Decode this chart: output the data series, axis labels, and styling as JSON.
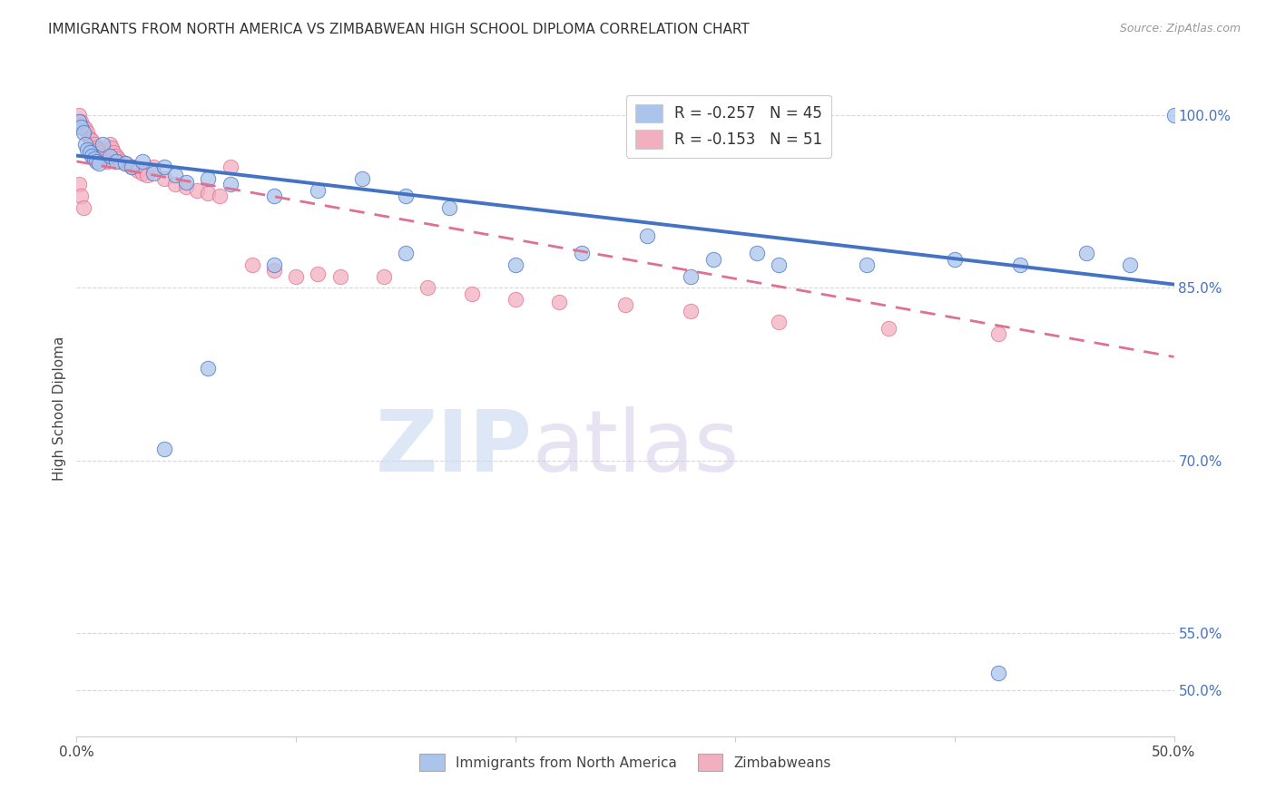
{
  "title": "IMMIGRANTS FROM NORTH AMERICA VS ZIMBABWEAN HIGH SCHOOL DIPLOMA CORRELATION CHART",
  "source": "Source: ZipAtlas.com",
  "ylabel": "High School Diploma",
  "legend_label_1": "Immigrants from North America",
  "legend_label_2": "Zimbabweans",
  "R1": -0.257,
  "N1": 45,
  "R2": -0.153,
  "N2": 51,
  "xmin": 0.0,
  "xmax": 0.5,
  "ymin": 0.46,
  "ymax": 1.03,
  "right_yticks": [
    0.5,
    0.55,
    0.7,
    0.85,
    1.0
  ],
  "right_yticklabels": [
    "50.0%",
    "55.0%",
    "70.0%",
    "85.0%",
    "100.0%"
  ],
  "xticks": [
    0.0,
    0.1,
    0.2,
    0.3,
    0.4,
    0.5
  ],
  "xticklabels": [
    "0.0%",
    "",
    "",
    "",
    "",
    "50.0%"
  ],
  "color_blue": "#aac4eb",
  "color_pink": "#f2afc0",
  "trendline_blue": "#4472c4",
  "trendline_pink": "#e07090",
  "blue_scatter_x": [
    0.001,
    0.002,
    0.003,
    0.004,
    0.005,
    0.006,
    0.007,
    0.008,
    0.009,
    0.01,
    0.012,
    0.015,
    0.018,
    0.022,
    0.025,
    0.03,
    0.035,
    0.04,
    0.045,
    0.05,
    0.06,
    0.07,
    0.09,
    0.11,
    0.13,
    0.15,
    0.17,
    0.2,
    0.23,
    0.26,
    0.29,
    0.32,
    0.36,
    0.4,
    0.43,
    0.46,
    0.48,
    0.31,
    0.28,
    0.15,
    0.09,
    0.06,
    0.04,
    0.5,
    0.42
  ],
  "blue_scatter_y": [
    0.995,
    0.99,
    0.985,
    0.975,
    0.97,
    0.968,
    0.965,
    0.962,
    0.96,
    0.958,
    0.975,
    0.965,
    0.96,
    0.958,
    0.955,
    0.96,
    0.95,
    0.955,
    0.948,
    0.942,
    0.945,
    0.94,
    0.93,
    0.935,
    0.945,
    0.93,
    0.92,
    0.87,
    0.88,
    0.895,
    0.875,
    0.87,
    0.87,
    0.875,
    0.87,
    0.88,
    0.87,
    0.88,
    0.86,
    0.88,
    0.87,
    0.78,
    0.71,
    1.0,
    0.515
  ],
  "pink_scatter_x": [
    0.001,
    0.002,
    0.003,
    0.004,
    0.005,
    0.006,
    0.007,
    0.008,
    0.009,
    0.01,
    0.011,
    0.012,
    0.013,
    0.014,
    0.015,
    0.016,
    0.017,
    0.018,
    0.019,
    0.02,
    0.022,
    0.025,
    0.028,
    0.03,
    0.032,
    0.035,
    0.04,
    0.045,
    0.05,
    0.055,
    0.06,
    0.065,
    0.07,
    0.08,
    0.09,
    0.1,
    0.11,
    0.12,
    0.14,
    0.16,
    0.18,
    0.2,
    0.22,
    0.25,
    0.28,
    0.32,
    0.37,
    0.42,
    0.001,
    0.002,
    0.003
  ],
  "pink_scatter_y": [
    1.0,
    0.995,
    0.99,
    0.988,
    0.985,
    0.98,
    0.978,
    0.975,
    0.972,
    0.97,
    0.968,
    0.965,
    0.963,
    0.96,
    0.975,
    0.972,
    0.968,
    0.965,
    0.962,
    0.96,
    0.958,
    0.955,
    0.952,
    0.95,
    0.948,
    0.955,
    0.945,
    0.94,
    0.938,
    0.935,
    0.932,
    0.93,
    0.955,
    0.87,
    0.865,
    0.86,
    0.862,
    0.86,
    0.86,
    0.85,
    0.845,
    0.84,
    0.838,
    0.835,
    0.83,
    0.82,
    0.815,
    0.81,
    0.94,
    0.93,
    0.92
  ],
  "watermark_zip": "ZIP",
  "watermark_atlas": "atlas",
  "background_color": "#ffffff",
  "grid_color": "#d8d8d8"
}
